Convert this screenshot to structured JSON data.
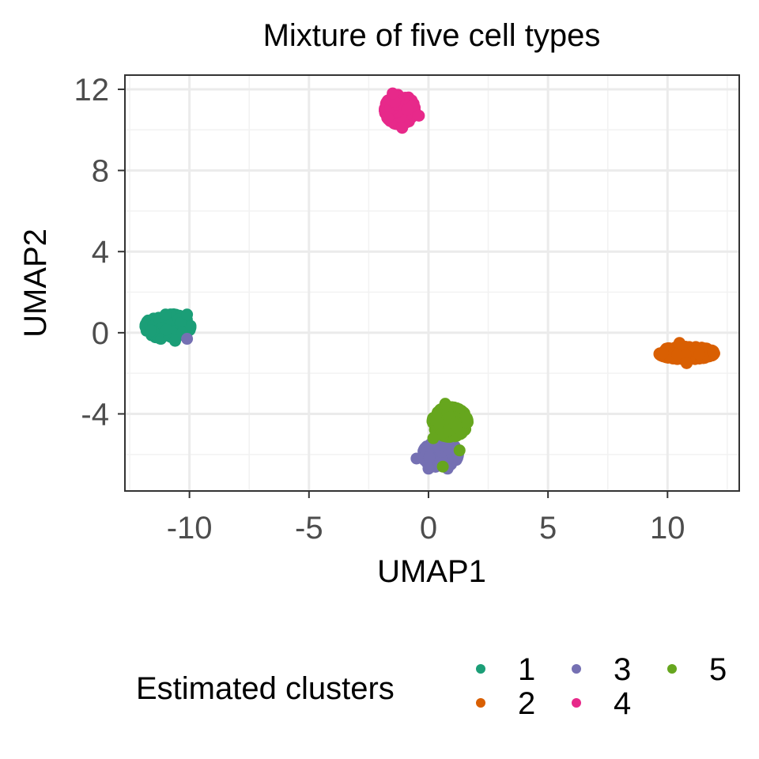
{
  "chart_data": {
    "type": "scatter",
    "title": "Mixture of five cell types",
    "xlabel": "UMAP1",
    "ylabel": "UMAP2",
    "xlim": [
      -12.7,
      13.0
    ],
    "ylim": [
      -7.8,
      12.7
    ],
    "x_ticks": [
      -10,
      -5,
      0,
      5,
      10
    ],
    "x_tick_labels": [
      "-10",
      "-5",
      "0",
      "5",
      "10"
    ],
    "y_ticks": [
      -4,
      0,
      4,
      8,
      12
    ],
    "y_tick_labels": [
      "-4",
      "0",
      "4",
      "8",
      "12"
    ],
    "grid": true,
    "legend": {
      "title": "Estimated clusters",
      "position": "bottom"
    },
    "series": [
      {
        "name": "1",
        "color": "#1b9e77",
        "center": [
          -10.9,
          0.3
        ],
        "spread": [
          0.45,
          0.3
        ],
        "points": [
          [
            -10.1,
            0.9
          ],
          [
            -11.6,
            0.1
          ],
          [
            -10.6,
            -0.4
          ],
          [
            -11.0,
            0.9
          ],
          [
            -10.3,
            0.0
          ]
        ]
      },
      {
        "name": "2",
        "color": "#d95f02",
        "center": [
          10.8,
          -1.0
        ],
        "spread": [
          0.55,
          0.15
        ],
        "points": [
          [
            9.8,
            -1.0
          ],
          [
            11.9,
            -0.9
          ],
          [
            10.8,
            -1.5
          ],
          [
            10.5,
            -0.5
          ]
        ]
      },
      {
        "name": "3",
        "color": "#7570b3",
        "center": [
          0.5,
          -6.0
        ],
        "spread": [
          0.35,
          0.3
        ],
        "points": [
          [
            -0.5,
            -6.2
          ],
          [
            0.0,
            -6.7
          ],
          [
            0.8,
            -6.7
          ],
          [
            1.1,
            -5.6
          ],
          [
            -10.1,
            -0.3
          ]
        ]
      },
      {
        "name": "4",
        "color": "#e7298a",
        "center": [
          -1.2,
          11.0
        ],
        "spread": [
          0.3,
          0.35
        ],
        "points": [
          [
            -1.5,
            11.8
          ],
          [
            -0.4,
            10.7
          ],
          [
            -1.1,
            10.1
          ],
          [
            -1.7,
            10.6
          ]
        ]
      },
      {
        "name": "5",
        "color": "#66a61e",
        "center": [
          0.9,
          -4.4
        ],
        "spread": [
          0.35,
          0.35
        ],
        "points": [
          [
            0.7,
            -3.5
          ],
          [
            1.6,
            -4.2
          ],
          [
            0.2,
            -5.2
          ],
          [
            0.6,
            -6.6
          ],
          [
            1.3,
            -5.8
          ]
        ]
      }
    ]
  }
}
